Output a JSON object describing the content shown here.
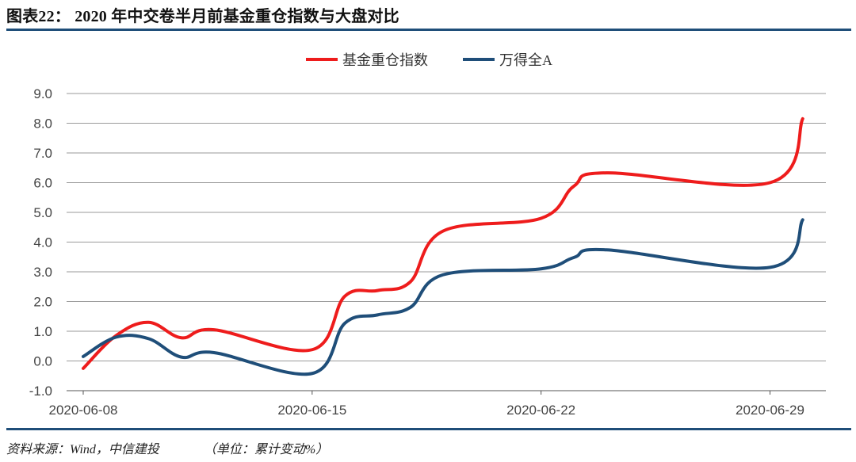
{
  "header": {
    "title": "图表22： 2020 年中交卷半月前基金重仓指数与大盘对比"
  },
  "footer": {
    "source": "资料来源：Wind，中信建投",
    "unit": "（单位：累计变动%）"
  },
  "colors": {
    "series_fund": "#ee1c1c",
    "series_wind": "#1f4e79",
    "grid": "#9a9a9a",
    "rule": "#1f4e79"
  },
  "chart_data": {
    "type": "line",
    "title": "",
    "xlabel": "",
    "ylabel": "",
    "ylim": [
      -1.0,
      9.0
    ],
    "yticks": [
      -1.0,
      0.0,
      1.0,
      2.0,
      3.0,
      4.0,
      5.0,
      6.0,
      7.0,
      8.0,
      9.0
    ],
    "ytick_labels": [
      "-1.0",
      "0.0",
      "1.0",
      "2.0",
      "3.0",
      "4.0",
      "5.0",
      "6.0",
      "7.0",
      "8.0",
      "9.0"
    ],
    "grid": true,
    "legend_position": "top-center",
    "x": [
      "2020-06-08",
      "2020-06-09",
      "2020-06-10",
      "2020-06-11",
      "2020-06-12",
      "2020-06-15",
      "2020-06-16",
      "2020-06-17",
      "2020-06-18",
      "2020-06-19",
      "2020-06-22",
      "2020-06-23",
      "2020-06-24",
      "2020-06-29",
      "2020-06-30"
    ],
    "x_tick_labels": [
      "2020-06-08",
      "2020-06-15",
      "2020-06-22",
      "2020-06-29"
    ],
    "series": [
      {
        "name": "基金重仓指数",
        "color": "#ee1c1c",
        "values": [
          -0.25,
          0.85,
          1.3,
          0.78,
          1.05,
          0.38,
          2.18,
          2.37,
          2.66,
          4.37,
          4.8,
          5.88,
          6.33,
          6.0,
          8.15
        ]
      },
      {
        "name": "万得全A",
        "color": "#1f4e79",
        "values": [
          0.15,
          0.8,
          0.75,
          0.13,
          0.28,
          -0.42,
          1.27,
          1.55,
          1.8,
          2.9,
          3.1,
          3.48,
          3.74,
          3.15,
          4.75
        ]
      }
    ],
    "x_positions_days": [
      0,
      1,
      2,
      3,
      4,
      7,
      8,
      9,
      10,
      11,
      14,
      15,
      16,
      21,
      22
    ]
  }
}
